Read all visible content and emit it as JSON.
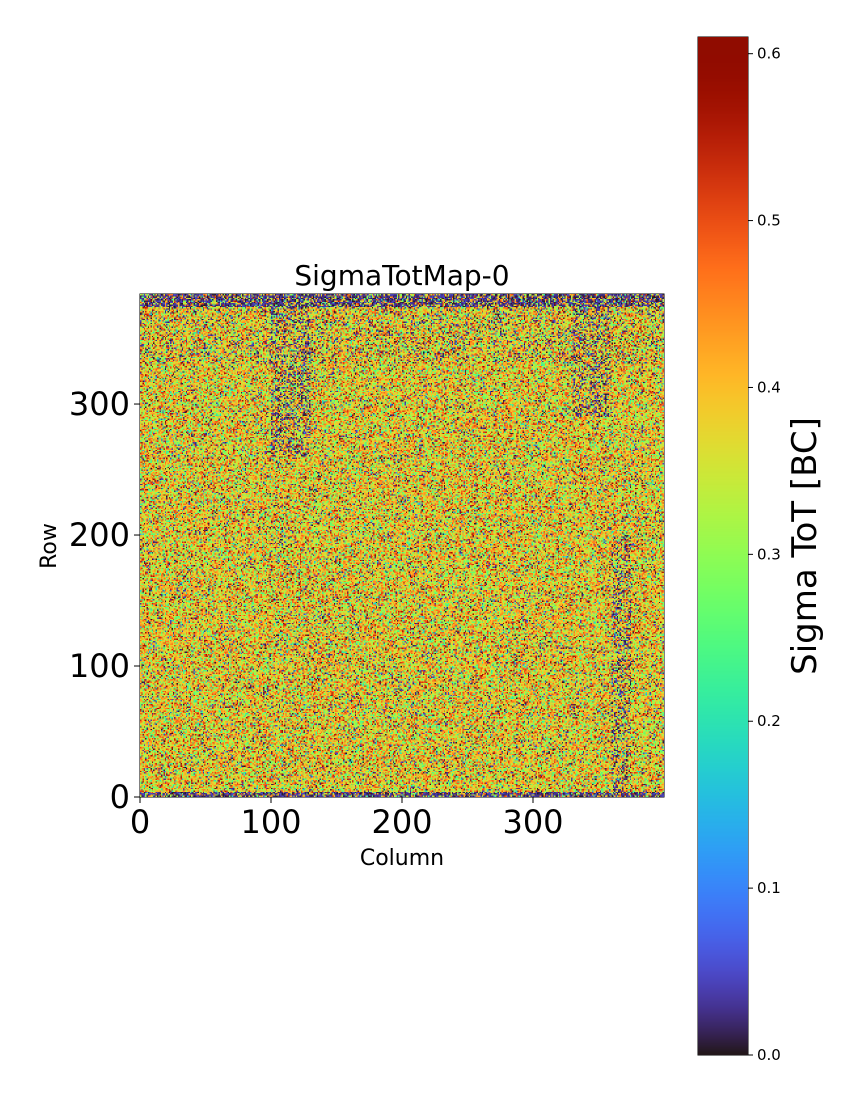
{
  "chart_data": {
    "type": "heatmap",
    "title": "SigmaTotMap-0",
    "xlabel": "Column",
    "ylabel": "Row",
    "colorbar_label": "Sigma ToT [BC]",
    "colormap": "turbo",
    "grid": false,
    "xlim": [
      0,
      400
    ],
    "ylim": [
      0,
      384
    ],
    "x_ticks": [
      0,
      100,
      200,
      300
    ],
    "x_tick_labels": [
      "0",
      "100",
      "200",
      "300"
    ],
    "y_ticks": [
      0,
      100,
      200,
      300
    ],
    "y_tick_labels": [
      "0",
      "100",
      "200",
      "300"
    ],
    "zlim": [
      0.0,
      0.61
    ],
    "colorbar_ticks": [
      0.0,
      0.1,
      0.2,
      0.3,
      0.4,
      0.5,
      0.6
    ],
    "colorbar_tick_labels": [
      "0.0",
      "0.1",
      "0.2",
      "0.3",
      "0.4",
      "0.5",
      "0.6"
    ],
    "dims": {
      "columns": 400,
      "rows": 384
    },
    "value_distribution": {
      "bulk_mean": 0.38,
      "bulk_spread": 0.09,
      "low_fraction_bulk": 0.07,
      "edge_rows_top": [
        374,
        384
      ],
      "edge_rows_bottom": [
        0,
        4
      ],
      "edge_low_fraction": 0.65,
      "darker_regions": [
        {
          "columns": [
            100,
            130
          ],
          "rows": [
            260,
            374
          ]
        },
        {
          "columns": [
            330,
            360
          ],
          "rows": [
            290,
            374
          ]
        },
        {
          "columns": [
            360,
            375
          ],
          "rows": [
            0,
            200
          ]
        }
      ]
    }
  }
}
